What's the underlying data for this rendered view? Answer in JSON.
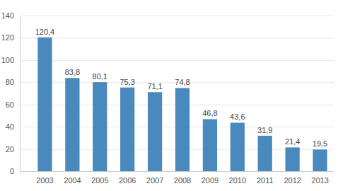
{
  "chart_data": {
    "type": "bar",
    "categories": [
      "2003",
      "2004",
      "2005",
      "2006",
      "2007",
      "2008",
      "2009",
      "2010",
      "2011",
      "2012",
      "2013"
    ],
    "values": [
      120.4,
      83.8,
      80.1,
      75.3,
      71.1,
      74.8,
      46.8,
      43.6,
      31.9,
      21.4,
      19.5
    ],
    "value_labels": [
      "120,4",
      "83,8",
      "80,1",
      "75,3",
      "71,1",
      "74,8",
      "46,8",
      "43,6",
      "31,9",
      "21,4",
      "19,5"
    ],
    "color": "#4a89bd",
    "ylim": [
      0,
      140
    ],
    "yticks": [
      0,
      20,
      40,
      60,
      80,
      100,
      120,
      140
    ],
    "grid": true,
    "data_labels": true
  }
}
